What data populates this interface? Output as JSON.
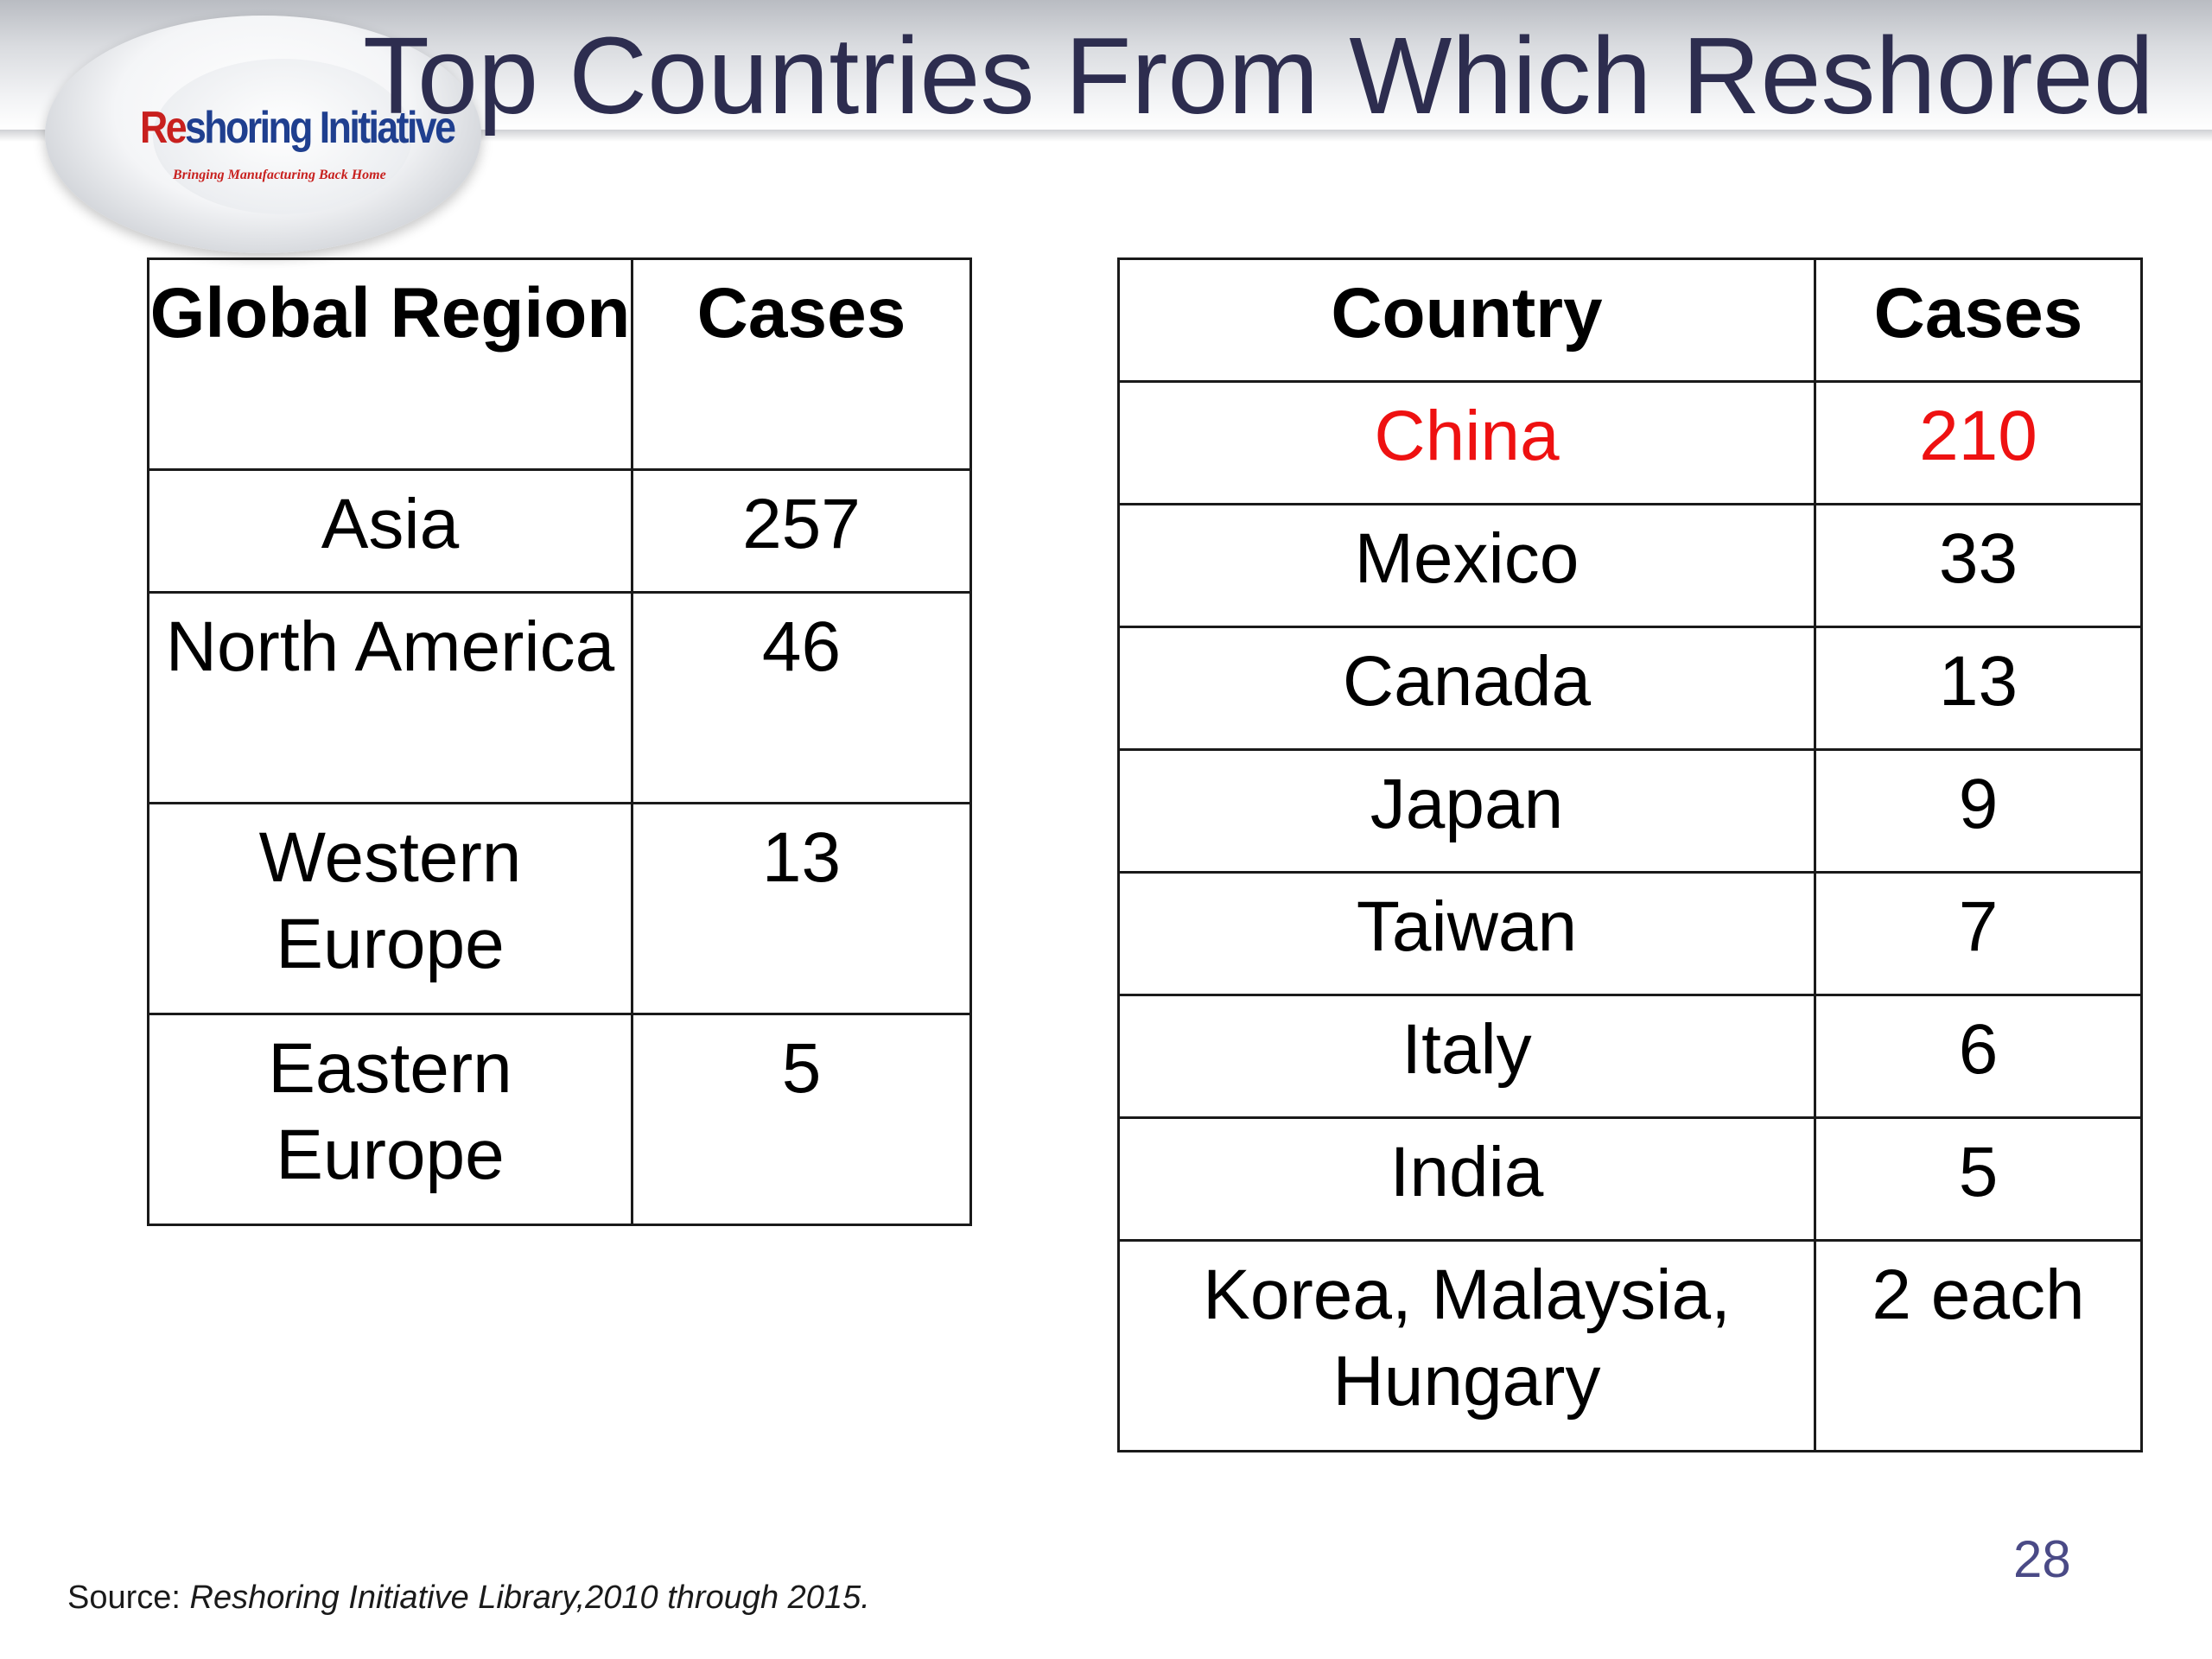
{
  "slide": {
    "title": "Top Countries From Which Reshored",
    "page_number": "28"
  },
  "logo": {
    "name_part1": "Re",
    "name_part2": "shoring Initiative",
    "tagline": "Bringing Manufacturing Back Home"
  },
  "region_table": {
    "headers": [
      "Global Region",
      "Cases"
    ],
    "rows": [
      {
        "region": "Asia",
        "cases": "257"
      },
      {
        "region": "North America",
        "cases": "46"
      },
      {
        "region": "Western Europe",
        "cases": "13"
      },
      {
        "region": "Eastern Europe",
        "cases": "5"
      }
    ]
  },
  "country_table": {
    "headers": [
      "Country",
      "Cases"
    ],
    "highlight_color": "#ee1111",
    "rows": [
      {
        "country": "China",
        "cases": "210"
      },
      {
        "country": "Mexico",
        "cases": "33"
      },
      {
        "country": "Canada",
        "cases": "13"
      },
      {
        "country": "Japan",
        "cases": "9"
      },
      {
        "country": "Taiwan",
        "cases": "7"
      },
      {
        "country": "Italy",
        "cases": "6"
      },
      {
        "country": "India",
        "cases": "5"
      },
      {
        "country": "Korea, Malaysia, Hungary",
        "cases": "2 each"
      }
    ]
  },
  "source": {
    "label": "Source: ",
    "text": "Reshoring Initiative Library,2010 through 2015."
  }
}
